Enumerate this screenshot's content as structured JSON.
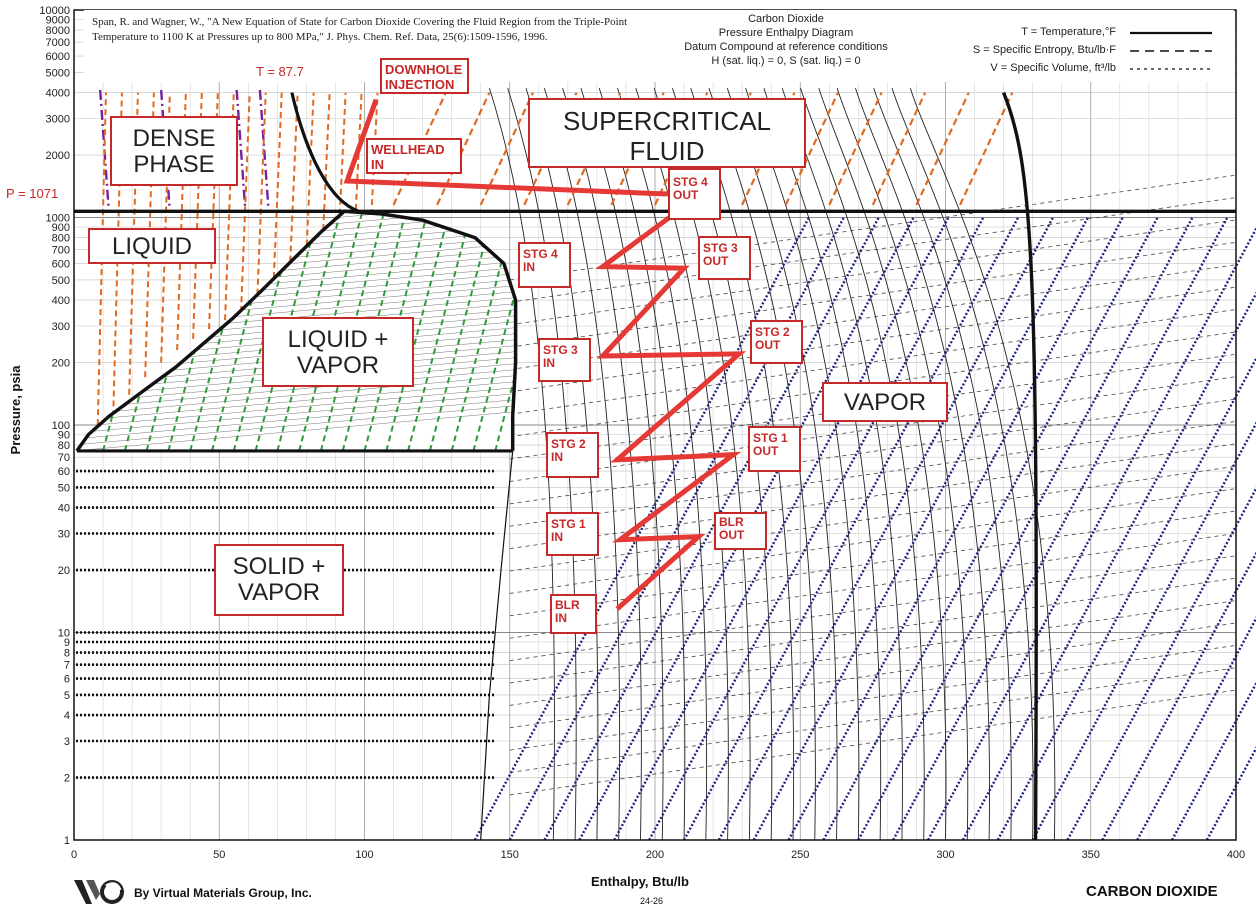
{
  "reference": "Span, R. and Wagner, W., \"A New Equation of State for Carbon Dioxide Covering the Fluid Region from the Triple-Point Temperature to 1100 K at Pressures up to 800 MPa,\" J. Phys. Chem. Ref. Data, 25(6):1509-1596, 1996.",
  "diagram_title": [
    "Carbon Dioxide",
    "Pressure Enthalpy Diagram",
    "Datum Compound at reference conditions",
    "H (sat. liq.) = 0,  S (sat. liq.) = 0"
  ],
  "legend": [
    {
      "label": "T = Temperature,°F",
      "style": "solid"
    },
    {
      "label": "S = Specific Entropy, Btu/lb·F",
      "style": "dashed"
    },
    {
      "label": "V = Specific Volume, ft³/lb",
      "style": "dotted"
    }
  ],
  "annotations": {
    "temperature": "T = 87.7",
    "pressure": "P = 1071"
  },
  "regions": [
    {
      "text": "DENSE PHASE",
      "lines": [
        "DENSE",
        "PHASE"
      ]
    },
    {
      "text": "SUPERCRITICAL FLUID",
      "lines": [
        "SUPERCRITICAL",
        "FLUID"
      ]
    },
    {
      "text": "LIQUID",
      "lines": [
        "LIQUID"
      ]
    },
    {
      "text": "LIQUID + VAPOR",
      "lines": [
        "LIQUID +",
        "VAPOR"
      ]
    },
    {
      "text": "VAPOR",
      "lines": [
        "VAPOR"
      ]
    },
    {
      "text": "SOLID + VAPOR",
      "lines": [
        "SOLID +",
        "VAPOR"
      ]
    }
  ],
  "stage_labels": [
    {
      "lines": [
        "DOWNHOLE",
        "INJECTION"
      ]
    },
    {
      "lines": [
        "WELLHEAD",
        "IN"
      ]
    },
    {
      "lines": [
        "STG 4",
        "OUT"
      ]
    },
    {
      "lines": [
        "STG 4",
        "IN"
      ]
    },
    {
      "lines": [
        "STG 3",
        "OUT"
      ]
    },
    {
      "lines": [
        "STG 3",
        "IN"
      ]
    },
    {
      "lines": [
        "STG 2",
        "OUT"
      ]
    },
    {
      "lines": [
        "STG 2",
        "IN"
      ]
    },
    {
      "lines": [
        "STG 1",
        "OUT"
      ]
    },
    {
      "lines": [
        "STG 1",
        "IN"
      ]
    },
    {
      "lines": [
        "BLR",
        "OUT"
      ]
    },
    {
      "lines": [
        "BLR",
        "IN"
      ]
    }
  ],
  "footer": {
    "company": "By Virtual Materials Group, Inc.",
    "code": "24-26",
    "substance": "CARBON DIOXIDE"
  },
  "colors": {
    "process_path": "#e53935",
    "label_border": "#c62828",
    "isentrope": "#1a237e",
    "wet_isentrope": "#2e9a3a",
    "liquid_isentrope": "#e06a1f",
    "dense_isotherm": "#7b1fa2"
  },
  "chart_data": {
    "type": "line",
    "xlabel": "Enthalpy, Btu/lb",
    "ylabel": "Pressure, psia",
    "xlim": [
      0,
      400
    ],
    "ylim": [
      1,
      10000
    ],
    "yscale": "log",
    "grid": true,
    "x_ticks": [
      0,
      50,
      100,
      150,
      200,
      250,
      300,
      350,
      400
    ],
    "y_ticks": [
      1,
      2,
      3,
      4,
      5,
      6,
      7,
      8,
      9,
      10,
      20,
      30,
      40,
      50,
      60,
      70,
      80,
      90,
      100,
      200,
      300,
      400,
      500,
      600,
      700,
      800,
      900,
      1000,
      2000,
      3000,
      4000,
      5000,
      6000,
      7000,
      8000,
      9000,
      10000
    ],
    "saturation_dome": {
      "liquid": [
        [
          1,
          75
        ],
        [
          5,
          90
        ],
        [
          12,
          110
        ],
        [
          25,
          150
        ],
        [
          35,
          190
        ],
        [
          45,
          250
        ],
        [
          55,
          330
        ],
        [
          65,
          450
        ],
        [
          75,
          620
        ],
        [
          85,
          850
        ],
        [
          93,
          1071
        ]
      ],
      "vapor": [
        [
          93,
          1071
        ],
        [
          106,
          1040
        ],
        [
          120,
          970
        ],
        [
          138,
          800
        ],
        [
          148,
          600
        ],
        [
          152,
          400
        ],
        [
          152,
          200
        ],
        [
          151,
          110
        ],
        [
          151,
          75
        ]
      ]
    },
    "triple_line": {
      "pressure": 75,
      "h_range": [
        1,
        151
      ]
    },
    "critical": {
      "temperature_F": 87.7,
      "pressure_psia": 1071
    },
    "process_path": {
      "name": "",
      "points": [
        [
          104,
          3700
        ],
        [
          94,
          1500
        ],
        [
          203,
          1300
        ],
        [
          216,
          1300
        ],
        [
          182,
          580
        ],
        [
          210,
          570
        ],
        [
          182,
          215
        ],
        [
          229,
          220
        ],
        [
          187,
          68
        ],
        [
          227,
          72
        ],
        [
          188,
          28
        ],
        [
          215,
          29
        ],
        [
          187,
          13
        ]
      ]
    }
  }
}
